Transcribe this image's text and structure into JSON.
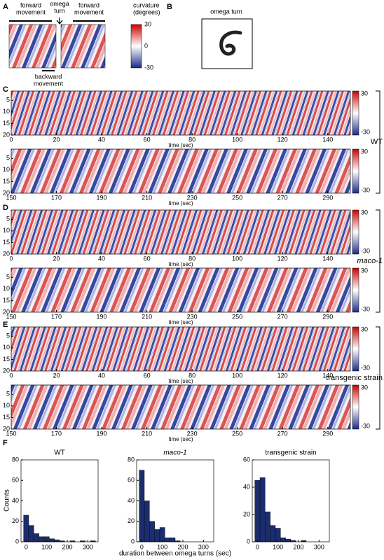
{
  "panel_labels": [
    "A",
    "B",
    "C",
    "D",
    "E",
    "F"
  ],
  "panel_a": {
    "forward_left": [
      "forward",
      "movement"
    ],
    "omega": [
      "omega",
      "turn"
    ],
    "forward_right": [
      "forward",
      "movement"
    ],
    "backward": [
      "backward",
      "movement"
    ],
    "colorbar_title": [
      "curvature",
      "(degrees)"
    ],
    "clim": [
      -30,
      30
    ],
    "colorbar_ticks": [
      30,
      0,
      -30
    ]
  },
  "panel_b": {
    "title": "omega turn"
  },
  "groups": [
    {
      "label": "WT"
    },
    {
      "label": "maco-1"
    },
    {
      "label": "transgenic strain"
    }
  ],
  "kymographs": [
    {
      "xlim": [
        0,
        150
      ],
      "xticks": [
        0,
        20,
        40,
        60,
        80,
        100,
        120,
        140
      ],
      "ylim": [
        1,
        20
      ],
      "yticks": [
        5,
        10,
        15,
        20
      ],
      "xlabel": "time (sec)",
      "clim": [
        -30,
        30
      ],
      "colorbar_ticks": [
        30,
        -30
      ]
    },
    {
      "xlim": [
        150,
        300
      ],
      "xticks": [
        150,
        170,
        190,
        210,
        230,
        250,
        270,
        290
      ],
      "ylim": [
        1,
        20
      ],
      "yticks": [
        5,
        10,
        15,
        20
      ],
      "xlabel": "time (sec)",
      "clim": [
        -30,
        30
      ],
      "colorbar_ticks": [
        30,
        -30
      ]
    },
    {
      "xlim": [
        0,
        150
      ],
      "xticks": [
        0,
        20,
        40,
        60,
        80,
        100,
        120,
        140
      ],
      "ylim": [
        1,
        20
      ],
      "yticks": [
        5,
        10,
        15,
        20
      ],
      "xlabel": "time (sec)",
      "clim": [
        -30,
        30
      ],
      "colorbar_ticks": [
        30,
        -30
      ]
    },
    {
      "xlim": [
        150,
        300
      ],
      "xticks": [
        150,
        170,
        190,
        210,
        230,
        250,
        270,
        290
      ],
      "ylim": [
        1,
        20
      ],
      "yticks": [
        5,
        10,
        15,
        20
      ],
      "xlabel": "time (sec)",
      "clim": [
        -30,
        30
      ],
      "colorbar_ticks": [
        30,
        -30
      ]
    },
    {
      "xlim": [
        0,
        150
      ],
      "xticks": [
        0,
        20,
        40,
        60,
        80,
        100,
        120,
        140
      ],
      "ylim": [
        1,
        20
      ],
      "yticks": [
        5,
        10,
        15,
        20
      ],
      "xlabel": "time (sec)",
      "clim": [
        -30,
        30
      ],
      "colorbar_ticks": [
        30,
        -30
      ]
    },
    {
      "xlim": [
        150,
        300
      ],
      "xticks": [
        150,
        170,
        190,
        210,
        230,
        250,
        270,
        290
      ],
      "ylim": [
        1,
        20
      ],
      "yticks": [
        5,
        10,
        15,
        20
      ],
      "xlabel": "time (sec)",
      "clim": [
        -30,
        30
      ],
      "colorbar_ticks": [
        30,
        -30
      ]
    }
  ],
  "histogram_ylabel": "Counts",
  "histogram_xlabel": "duration between omega turns (sec)",
  "chart_data": [
    {
      "type": "histogram",
      "title": "WT",
      "color": "#1c2d6e",
      "bins": [
        -12.5,
        12.5,
        37.5,
        62.5,
        87.5,
        112.5,
        137.5,
        162.5,
        187.5,
        212.5,
        237.5,
        262.5,
        287.5,
        312.5,
        337.5
      ],
      "counts": [
        26,
        16,
        8,
        5,
        5,
        3,
        2,
        1,
        0,
        1,
        0,
        1,
        0,
        1
      ],
      "xlim": [
        -25,
        350
      ],
      "ylim": [
        0,
        80
      ],
      "xticks": [
        0,
        100,
        200,
        300
      ],
      "yticks": [
        0,
        20,
        40,
        60,
        80
      ]
    },
    {
      "type": "histogram",
      "title": "maco-1",
      "color": "#1c2d6e",
      "bins": [
        -12.5,
        12.5,
        37.5,
        62.5,
        87.5,
        112.5,
        137.5,
        162.5,
        187.5,
        212.5,
        237.5,
        262.5,
        287.5,
        312.5,
        337.5
      ],
      "counts": [
        70,
        40,
        20,
        12,
        14,
        4,
        4,
        1,
        0,
        0,
        0,
        0,
        0,
        0
      ],
      "xlim": [
        -25,
        350
      ],
      "ylim": [
        0,
        80
      ],
      "xticks": [
        0,
        100,
        200,
        300
      ],
      "yticks": [
        0,
        20,
        40,
        60,
        80
      ]
    },
    {
      "type": "histogram",
      "title": "transgenic strain",
      "color": "#1c2d6e",
      "bins": [
        -12.5,
        12.5,
        37.5,
        62.5,
        87.5,
        112.5,
        137.5,
        162.5,
        187.5,
        212.5,
        237.5,
        262.5,
        287.5,
        312.5,
        337.5
      ],
      "counts": [
        45,
        47,
        22,
        12,
        10,
        3,
        2,
        1,
        0,
        1,
        0,
        0,
        0,
        0
      ],
      "xlim": [
        -25,
        350
      ],
      "ylim": [
        0,
        60
      ],
      "xticks": [
        0,
        100,
        200,
        300
      ],
      "yticks": [
        0,
        20,
        40,
        60
      ]
    }
  ]
}
